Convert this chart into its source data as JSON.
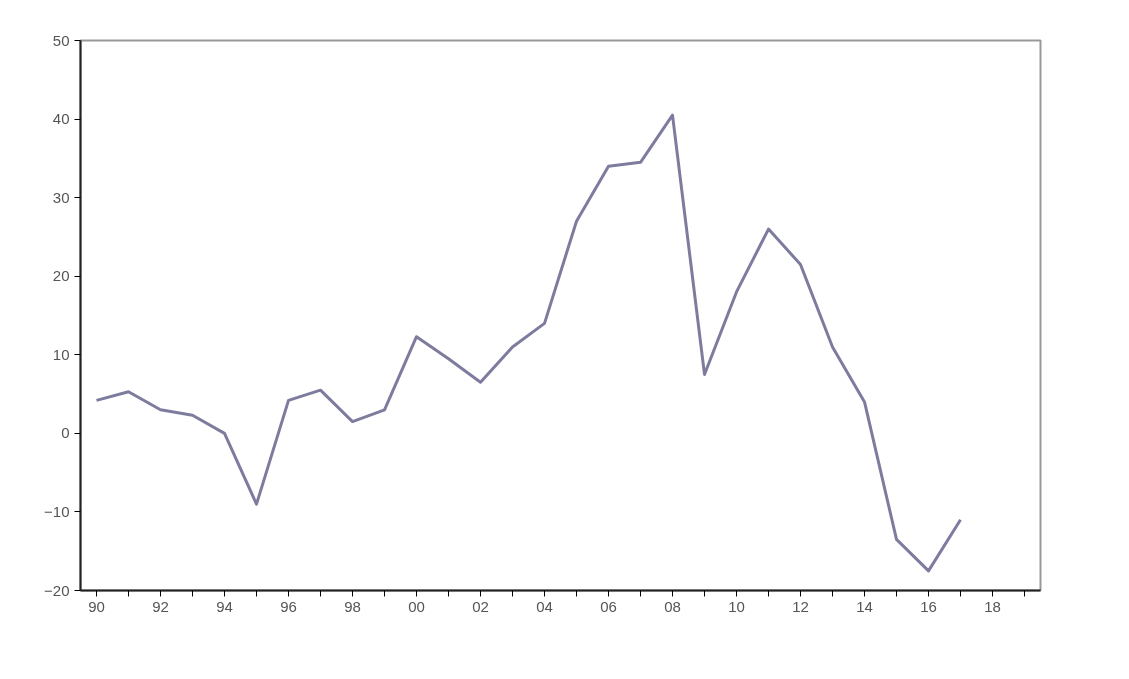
{
  "chart_data": {
    "type": "line",
    "x": [
      1990,
      1991,
      1992,
      1993,
      1994,
      1995,
      1996,
      1997,
      1998,
      1999,
      2000,
      2001,
      2002,
      2003,
      2004,
      2005,
      2006,
      2007,
      2008,
      2009,
      2010,
      2011,
      2012,
      2013,
      2014,
      2015,
      2016,
      2017
    ],
    "series": [
      {
        "color": "#7d7c9e",
        "values": [
          4.2,
          5.3,
          3.0,
          2.3,
          0.0,
          -9.0,
          4.2,
          5.5,
          1.5,
          3.0,
          12.3,
          9.5,
          6.5,
          11.0,
          14.0,
          27.0,
          34.0,
          34.5,
          40.5,
          7.5,
          18.0,
          26.0,
          21.5,
          11.0,
          4.0,
          -13.5,
          -17.5,
          -11.0
        ]
      }
    ],
    "xlim": [
      1989.5,
      2019.5
    ],
    "xticks": [
      {
        "value": 1990,
        "label": "90"
      },
      {
        "value": 1991,
        "label": null
      },
      {
        "value": 1992,
        "label": "92"
      },
      {
        "value": 1993,
        "label": null
      },
      {
        "value": 1994,
        "label": "94"
      },
      {
        "value": 1995,
        "label": null
      },
      {
        "value": 1996,
        "label": "96"
      },
      {
        "value": 1997,
        "label": null
      },
      {
        "value": 1998,
        "label": "98"
      },
      {
        "value": 1999,
        "label": null
      },
      {
        "value": 2000,
        "label": "00"
      },
      {
        "value": 2001,
        "label": null
      },
      {
        "value": 2002,
        "label": "02"
      },
      {
        "value": 2003,
        "label": null
      },
      {
        "value": 2004,
        "label": "04"
      },
      {
        "value": 2005,
        "label": null
      },
      {
        "value": 2006,
        "label": "06"
      },
      {
        "value": 2007,
        "label": null
      },
      {
        "value": 2008,
        "label": "08"
      },
      {
        "value": 2009,
        "label": null
      },
      {
        "value": 2010,
        "label": "10"
      },
      {
        "value": 2011,
        "label": null
      },
      {
        "value": 2012,
        "label": "12"
      },
      {
        "value": 2013,
        "label": null
      },
      {
        "value": 2014,
        "label": "14"
      },
      {
        "value": 2015,
        "label": null
      },
      {
        "value": 2016,
        "label": "16"
      },
      {
        "value": 2017,
        "label": null
      },
      {
        "value": 2018,
        "label": "18"
      },
      {
        "value": 2019,
        "label": null
      }
    ],
    "ylim": [
      -20,
      50
    ],
    "yticks": [
      -20,
      -10,
      0,
      10,
      20,
      30,
      40,
      50
    ],
    "grid": false,
    "marker": "none",
    "line_style": "solid"
  }
}
